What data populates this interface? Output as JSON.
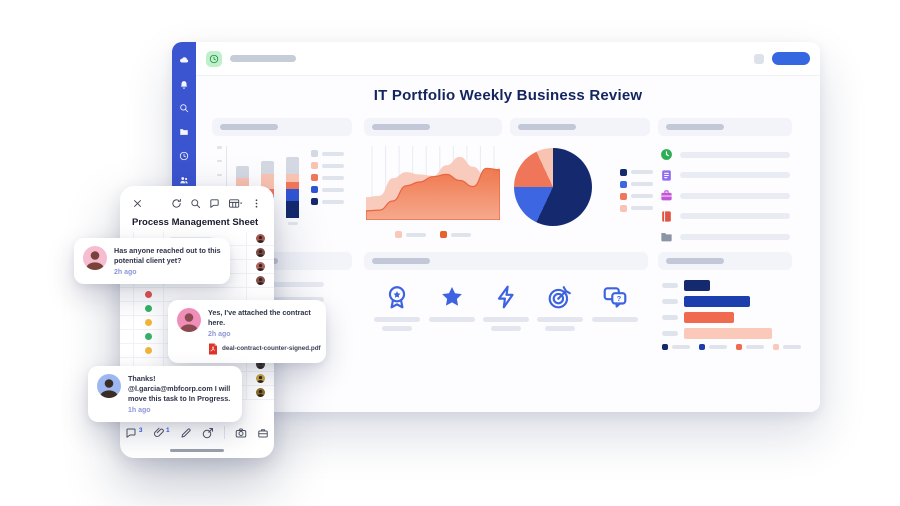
{
  "main_window": {
    "title": "IT Portfolio Weekly Business Review",
    "sidebar_icons": [
      "cloud-icon",
      "bell-icon",
      "search-icon",
      "folder-icon",
      "clock-icon",
      "people-icon",
      "star-icon"
    ],
    "topbar": {
      "app_icon": "clock-icon",
      "button_label": ""
    }
  },
  "palette": {
    "sidebar": "#3b54cf",
    "accent-blue": "#3467e0",
    "navy": "#152a6e",
    "blue": "#2f55d4",
    "salmon": "#f0765a",
    "pink": "#f9c3b2",
    "card-header": "#f2f4f9",
    "icon-blue": "#3d63e0",
    "green-badge": "#bff0cb",
    "green-badge-glyph": "#1f8f45"
  },
  "chart_data": [
    {
      "type": "bar",
      "variant": "stacked-vertical",
      "title": "",
      "categories": [
        "",
        "",
        ""
      ],
      "series": [
        {
          "name": "segment-1",
          "color": "#d3d8e3",
          "values": [
            12,
            13,
            17
          ]
        },
        {
          "name": "segment-2",
          "color": "#f9c3b2",
          "values": [
            20,
            15,
            8
          ]
        },
        {
          "name": "segment-3",
          "color": "#f0765a",
          "values": [
            6,
            7,
            7
          ]
        },
        {
          "name": "segment-4",
          "color": "#2f55d4",
          "values": [
            6,
            10,
            12
          ]
        },
        {
          "name": "segment-5",
          "color": "#152a6e",
          "values": [
            8,
            12,
            17
          ]
        }
      ],
      "legend_position": "right",
      "axis_labels_visible": false
    },
    {
      "type": "area",
      "variant": "smooth-overlapping",
      "title": "",
      "x": [
        0,
        1,
        2,
        3,
        4,
        5,
        6,
        7,
        8,
        9,
        10
      ],
      "series": [
        {
          "name": "series-1",
          "color": "#f9c8b8",
          "values": [
            30,
            32,
            55,
            63,
            60,
            58,
            72,
            83,
            70,
            55,
            68
          ]
        },
        {
          "name": "series-2",
          "color": "#e8622d",
          "gradient": true,
          "values": [
            12,
            13,
            25,
            45,
            50,
            57,
            60,
            52,
            44,
            68,
            66
          ]
        }
      ],
      "grid": "vertical",
      "gridlines": 10,
      "legend_position": "bottom",
      "ylim": [
        0,
        100
      ]
    },
    {
      "type": "pie",
      "title": "",
      "slices": [
        {
          "label": "",
          "color": "#152a6e",
          "value": 57
        },
        {
          "label": "",
          "color": "#3d66e2",
          "value": 18
        },
        {
          "label": "",
          "color": "#f0765a",
          "value": 18
        },
        {
          "label": "",
          "color": "#f9c3b2",
          "value": 7
        }
      ],
      "legend_position": "right"
    },
    {
      "type": "bar",
      "variant": "horizontal",
      "title": "",
      "categories": [
        "",
        "",
        "",
        ""
      ],
      "values": [
        26,
        66,
        50,
        88
      ],
      "colors": [
        "#152a6e",
        "#1d3fae",
        "#ef6a4e",
        "#fbc9ba"
      ],
      "xlim": [
        0,
        100
      ],
      "legend_position": "bottom"
    }
  ],
  "list_card": {
    "items": [
      {
        "icon": "clock-icon",
        "color": "#2fae55"
      },
      {
        "icon": "document-icon",
        "color": "#8f6bf2"
      },
      {
        "icon": "briefcase-icon",
        "color": "#c457d6"
      },
      {
        "icon": "book-icon",
        "color": "#e05547"
      },
      {
        "icon": "folder-icon",
        "color": "#8b95a6"
      },
      {
        "icon": "table-icon",
        "color": "#2e98b5"
      }
    ]
  },
  "icons_card": {
    "icons": [
      "award-icon",
      "star-icon",
      "lightning-icon",
      "target-icon",
      "chat-question-icon"
    ],
    "double_line_cells": [
      0,
      2,
      3
    ]
  },
  "overlay": {
    "title": "Process Management Sheet",
    "header_icons": [
      "refresh-icon",
      "search-icon",
      "comment-icon",
      "table-view-icon",
      "more-icon"
    ],
    "comments": [
      {
        "text": "Has anyone reached out to this potential client yet?",
        "time": "2h ago",
        "avatar_bg": "#f6bdd0",
        "avatar_fg": "#7a4238"
      },
      {
        "text": "Yes, I've attached the contract here.",
        "time": "2h ago",
        "attachment": "deal-contract-counter-signed.pdf",
        "avatar_bg": "#ef8fb9",
        "avatar_fg": "#8a4a50"
      },
      {
        "text": "Thanks! @l.garcia@mbfcorp.com I will move this task to In Progress.",
        "time": "1h ago",
        "avatar_bg": "#9db7f2",
        "avatar_fg": "#3a2e24"
      }
    ],
    "toolbar": {
      "comments_count": "3",
      "attachments_count": "1",
      "icons": [
        "comments-icon",
        "attachment-icon",
        "edit-icon",
        "share-icon",
        "camera-icon",
        "archive-icon"
      ]
    },
    "sheet": {
      "dot_colors": [
        null,
        null,
        null,
        "#f2b63c",
        "#e05252",
        "#35b368",
        "#f2b63c",
        "#35b368",
        "#f2b63c",
        null,
        null,
        "#35b368"
      ],
      "pill_rows": [
        1,
        1,
        0,
        1,
        0,
        1,
        0,
        1,
        1,
        0,
        1,
        0
      ],
      "avatar_colors": [
        "#a8554e",
        "#7d4a42",
        "#b0605a",
        "#8a4f4a",
        null,
        null,
        null,
        null,
        "#4e7f4a",
        "#3f3a36",
        "#c9a43f",
        "#8a6d28"
      ]
    }
  }
}
